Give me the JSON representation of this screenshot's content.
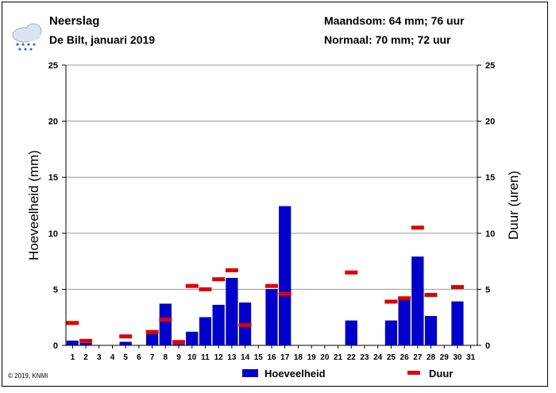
{
  "header": {
    "title": "Neerslag",
    "subtitle": "De Bilt, januari 2019",
    "monthly_total": "Maandsom: 64 mm; 76 uur",
    "normal": "Normaal: 70 mm; 72 uur",
    "icon": "rain-cloud-icon"
  },
  "footer": {
    "copyright": "© 2019, KNMI"
  },
  "colors": {
    "amount": "#0000cc",
    "duration": "#dd0000"
  },
  "chart_data": {
    "type": "bar",
    "ylabel": "Hoeveelheid (mm)",
    "y2label": "Duur (uren)",
    "ylim": [
      0,
      25
    ],
    "y2lim": [
      0,
      25
    ],
    "yticks": [
      0,
      5,
      10,
      15,
      20,
      25
    ],
    "grid": true,
    "legend_position": "bottom",
    "categories": [
      "1",
      "2",
      "3",
      "4",
      "5",
      "6",
      "7",
      "8",
      "9",
      "10",
      "11",
      "12",
      "13",
      "14",
      "15",
      "16",
      "17",
      "18",
      "19",
      "20",
      "21",
      "22",
      "23",
      "24",
      "25",
      "26",
      "27",
      "28",
      "29",
      "30",
      "31"
    ],
    "series": [
      {
        "name": "Hoeveelheid",
        "kind": "bar",
        "values": [
          0.4,
          0.2,
          0,
          0,
          0.3,
          0,
          1.0,
          3.7,
          0.1,
          1.2,
          2.5,
          3.6,
          6.0,
          3.8,
          0,
          5.0,
          12.4,
          0,
          0,
          0,
          0,
          2.2,
          0,
          0,
          2.2,
          4.2,
          7.9,
          2.6,
          0,
          3.9,
          0
        ]
      },
      {
        "name": "Duur",
        "kind": "marker",
        "values": [
          2.0,
          0.4,
          null,
          null,
          0.8,
          null,
          1.2,
          2.3,
          0.3,
          5.3,
          5.0,
          5.9,
          6.7,
          1.8,
          null,
          5.3,
          4.6,
          null,
          null,
          null,
          null,
          6.5,
          null,
          null,
          3.9,
          4.2,
          10.5,
          4.5,
          null,
          5.2,
          null
        ]
      }
    ]
  }
}
